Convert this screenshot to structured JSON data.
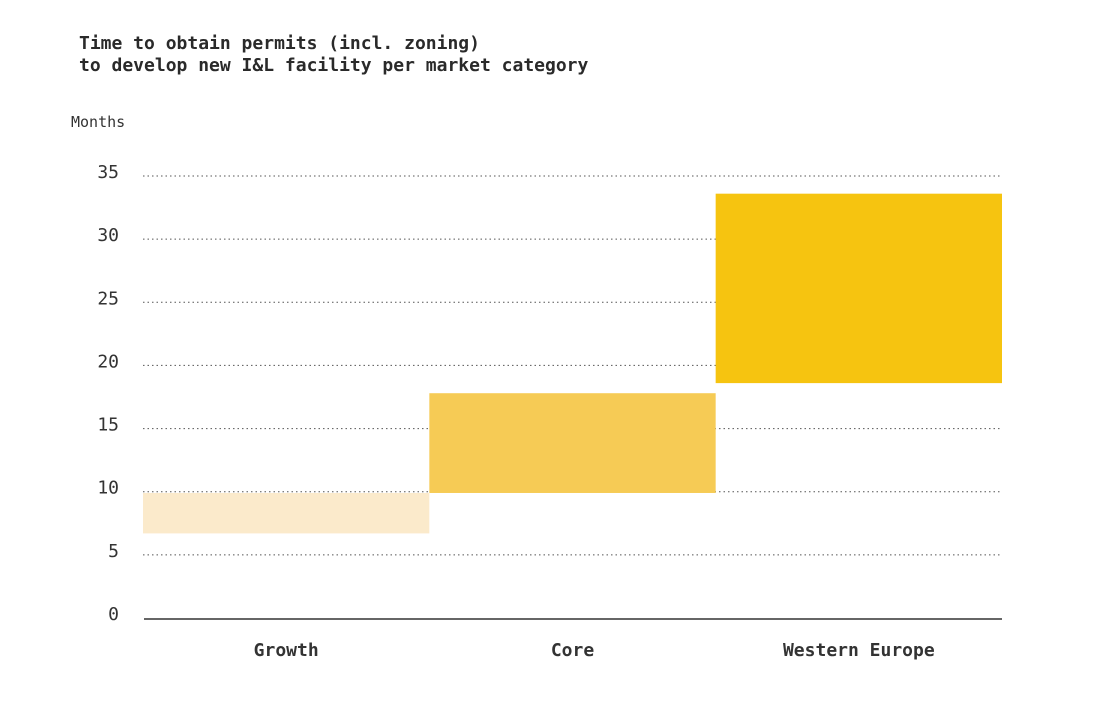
{
  "chart_data": {
    "type": "bar",
    "title": [
      "Time to obtain permits (incl. zoning)",
      "to develop new I&L facility per market category"
    ],
    "ylabel": "Months",
    "xlabel": "",
    "ylim": [
      0,
      35
    ],
    "yticks": [
      0,
      5,
      10,
      15,
      20,
      25,
      30,
      35
    ],
    "grid": true,
    "categories": [
      "Growth",
      "Core",
      "Western Europe"
    ],
    "ranges": [
      {
        "category": "Growth",
        "low": 6.7,
        "high": 9.9,
        "color": "#FBEACB"
      },
      {
        "category": "Core",
        "low": 9.9,
        "high": 17.8,
        "color": "#F6CB55"
      },
      {
        "category": "Western Europe",
        "low": 18.6,
        "high": 33.6,
        "color": "#F6C410"
      }
    ]
  }
}
